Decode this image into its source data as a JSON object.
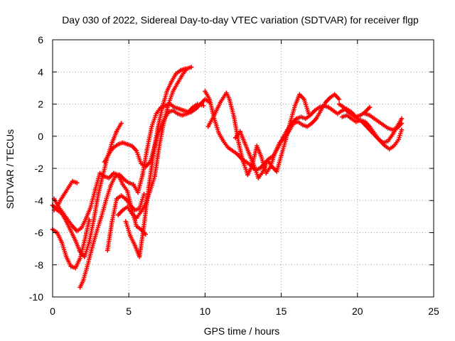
{
  "chart_data": {
    "type": "scatter",
    "title": "Day 030 of 2022, Sidereal Day-to-day VTEC variation (SDTVAR) for receiver flgp",
    "xlabel": "GPS time / hours",
    "ylabel": "SDTVAR / TECUs",
    "xlim": [
      0,
      25
    ],
    "ylim": [
      -10,
      6
    ],
    "xticks": [
      0,
      5,
      10,
      15,
      20,
      25
    ],
    "yticks": [
      -10,
      -8,
      -6,
      -4,
      -2,
      0,
      2,
      4,
      6
    ],
    "grid": true,
    "marker": "+",
    "color": "#ff0000",
    "series": [
      {
        "x": [
          0.0,
          0.3,
          0.6,
          0.9,
          1.2,
          1.5,
          1.8,
          2.1,
          2.4,
          2.7,
          3.0,
          3.3,
          3.6,
          3.9,
          4.2,
          4.5
        ],
        "y": [
          -4.3,
          -4.6,
          -4.8,
          -5.3,
          -5.9,
          -6.5,
          -7.2,
          -7.5,
          -6.6,
          -5.2,
          -3.6,
          -2.4,
          -1.3,
          -0.4,
          0.3,
          0.8
        ]
      },
      {
        "x": [
          0.0,
          0.3,
          0.6,
          0.9,
          1.2,
          1.5,
          1.8,
          2.1,
          2.4
        ],
        "y": [
          -5.8,
          -6.0,
          -6.6,
          -7.5,
          -8.1,
          -8.2,
          -7.6,
          -6.5,
          -5.2
        ]
      },
      {
        "x": [
          0.1,
          0.4,
          0.7,
          1.0,
          1.3,
          1.6,
          1.9,
          2.2,
          2.5,
          2.8,
          3.1,
          3.4,
          3.7,
          4.0,
          4.3,
          4.6,
          4.9,
          5.2,
          5.5,
          5.8,
          6.1
        ],
        "y": [
          -3.9,
          -4.4,
          -4.8,
          -5.2,
          -5.6,
          -5.9,
          -5.7,
          -5.1,
          -4.4,
          -3.3,
          -2.3,
          -2.5,
          -2.6,
          -2.3,
          -2.4,
          -3.0,
          -3.4,
          -4.6,
          -5.6,
          -5.8,
          -6.1
        ]
      },
      {
        "x": [
          0.1,
          0.3,
          0.5,
          0.7,
          0.9,
          1.1,
          1.3,
          1.6
        ],
        "y": [
          -4.6,
          -4.4,
          -4.0,
          -3.7,
          -3.4,
          -3.1,
          -2.8,
          -2.9
        ]
      },
      {
        "x": [
          1.8,
          2.0,
          2.3,
          2.6,
          2.9,
          3.2,
          3.5,
          3.8,
          4.1,
          4.4,
          4.7,
          5.0,
          5.3,
          5.6,
          5.9,
          6.2,
          6.5,
          6.8,
          7.1,
          7.4,
          7.7,
          8.0,
          8.3,
          8.6,
          8.9,
          9.2,
          9.5,
          9.9
        ],
        "y": [
          -9.4,
          -9.0,
          -8.0,
          -6.9,
          -5.9,
          -5.0,
          -4.0,
          -3.1,
          -2.5,
          -2.4,
          -2.7,
          -2.9,
          -3.0,
          -3.5,
          -2.4,
          -0.8,
          0.6,
          1.4,
          1.8,
          1.9,
          2.0,
          1.8,
          1.7,
          1.6,
          1.5,
          1.8,
          2.0,
          1.9
        ]
      },
      {
        "x": [
          3.6,
          3.9,
          4.2,
          4.5,
          4.8,
          5.1,
          5.4,
          5.7,
          6.0
        ],
        "y": [
          -7.1,
          -5.3,
          -3.9,
          -3.7,
          -3.9,
          -4.3,
          -4.6,
          -4.5,
          -3.6
        ]
      },
      {
        "x": [
          4.3,
          4.6,
          4.9,
          5.2,
          5.5,
          5.8,
          6.1,
          6.4,
          6.7,
          7.0,
          7.3,
          7.6,
          7.9,
          8.2,
          8.5,
          8.8,
          9.1
        ],
        "y": [
          -4.9,
          -4.6,
          -4.4,
          -4.8,
          -5.1,
          -4.7,
          -4.2,
          -3.4,
          -2.5,
          -0.6,
          0.9,
          2.0,
          2.8,
          3.3,
          3.8,
          4.2,
          4.3
        ]
      },
      {
        "x": [
          4.8,
          5.1,
          5.4,
          5.7,
          6.0,
          6.3,
          6.6,
          6.9,
          7.2,
          7.5,
          7.8,
          8.1,
          8.4,
          8.7
        ],
        "y": [
          -5.3,
          -6.2,
          -6.8,
          -7.5,
          -5.5,
          -3.2,
          -1.2,
          0.5,
          1.8,
          2.8,
          3.4,
          3.9,
          4.1,
          4.2
        ]
      },
      {
        "x": [
          3.4,
          3.7,
          4.0,
          4.3,
          4.6,
          4.9,
          5.2,
          5.5,
          5.8,
          6.1,
          6.4,
          6.7,
          7.0,
          7.3,
          7.6,
          7.9,
          8.2,
          8.5,
          8.8,
          9.1,
          9.4,
          9.7,
          10.0,
          10.3
        ],
        "y": [
          -1.6,
          -1.1,
          -0.7,
          -0.5,
          -0.4,
          -0.5,
          -0.6,
          -0.9,
          -1.7,
          -1.9,
          -1.6,
          -0.6,
          0.4,
          1.0,
          1.5,
          1.6,
          1.4,
          1.3,
          1.4,
          1.5,
          1.7,
          2.0,
          2.3,
          2.1
        ]
      },
      {
        "x": [
          10.0,
          10.3,
          10.6,
          10.9,
          11.2,
          11.5,
          11.8,
          12.1,
          12.4,
          12.7,
          13.0,
          13.3,
          13.6,
          13.9,
          14.2,
          14.5,
          14.8,
          15.1,
          15.4,
          15.7,
          16.0,
          16.3,
          16.6,
          16.9,
          17.2,
          17.5,
          17.8,
          18.1,
          18.4,
          18.7,
          19.0,
          19.3,
          19.6,
          19.9,
          20.2,
          20.5,
          20.8
        ],
        "y": [
          2.8,
          2.3,
          1.1,
          0.2,
          -0.3,
          -0.7,
          -0.9,
          -1.1,
          -1.4,
          -1.6,
          -1.8,
          -2.1,
          -2.0,
          -1.7,
          -1.4,
          -1.2,
          -0.7,
          -0.1,
          0.4,
          0.8,
          1.1,
          1.2,
          1.1,
          1.3,
          1.6,
          1.8,
          1.9,
          1.8,
          1.6,
          1.4,
          1.6,
          1.7,
          1.5,
          1.2,
          1.3,
          1.5,
          1.8
        ]
      },
      {
        "x": [
          10.2,
          10.6,
          11.0,
          11.4,
          11.6,
          11.9,
          12.2,
          12.5,
          12.8,
          13.1,
          13.4,
          13.7,
          14.0,
          14.3,
          14.6,
          14.9,
          15.2,
          15.5,
          15.8,
          16.1,
          16.4,
          16.7,
          17.0,
          17.3,
          17.6,
          17.9,
          18.2,
          18.5,
          18.8
        ],
        "y": [
          0.6,
          1.3,
          2.1,
          2.7,
          2.3,
          1.2,
          -0.4,
          -1.6,
          -2.4,
          -1.8,
          -0.6,
          -1.3,
          -2.3,
          -1.9,
          -1.0,
          -0.4,
          -0.1,
          0.3,
          0.8,
          0.9,
          0.7,
          0.6,
          0.8,
          1.1,
          1.6,
          2.1,
          2.4,
          2.6,
          2.3
        ]
      },
      {
        "x": [
          12.0,
          12.3,
          12.6,
          12.9,
          13.2,
          13.5,
          13.8,
          14.1,
          14.4,
          14.7,
          15.0,
          15.3,
          15.6,
          15.9,
          16.2,
          16.5,
          16.8
        ],
        "y": [
          -0.1,
          0.3,
          -0.4,
          -1.1,
          -1.8,
          -2.6,
          -2.2,
          -1.5,
          -1.9,
          -2.2,
          -1.2,
          -0.2,
          0.9,
          1.9,
          2.6,
          2.3,
          1.4
        ]
      },
      {
        "x": [
          18.8,
          19.1,
          19.4,
          19.7,
          20.0,
          20.3,
          20.6,
          20.9,
          21.2,
          21.5,
          21.8,
          22.1,
          22.4,
          22.7,
          22.9
        ],
        "y": [
          2.0,
          1.8,
          1.5,
          1.3,
          1.1,
          0.9,
          0.6,
          0.3,
          0.0,
          -0.3,
          -0.6,
          -0.8,
          -0.6,
          -0.2,
          0.4
        ]
      },
      {
        "x": [
          19.0,
          19.3,
          19.6,
          19.9,
          20.2,
          20.5,
          20.8,
          21.1,
          21.4,
          21.7,
          22.0,
          22.3,
          22.6,
          22.9
        ],
        "y": [
          1.2,
          1.3,
          1.1,
          0.9,
          1.0,
          0.9,
          0.6,
          0.2,
          -0.2,
          -0.4,
          -0.3,
          0.1,
          0.6,
          1.1
        ]
      },
      {
        "x": [
          20.5,
          20.8,
          21.1,
          21.4,
          21.7,
          22.0,
          22.3,
          22.6,
          22.9
        ],
        "y": [
          1.4,
          1.3,
          1.1,
          0.9,
          0.7,
          0.5,
          0.4,
          0.5,
          0.8
        ]
      }
    ]
  }
}
